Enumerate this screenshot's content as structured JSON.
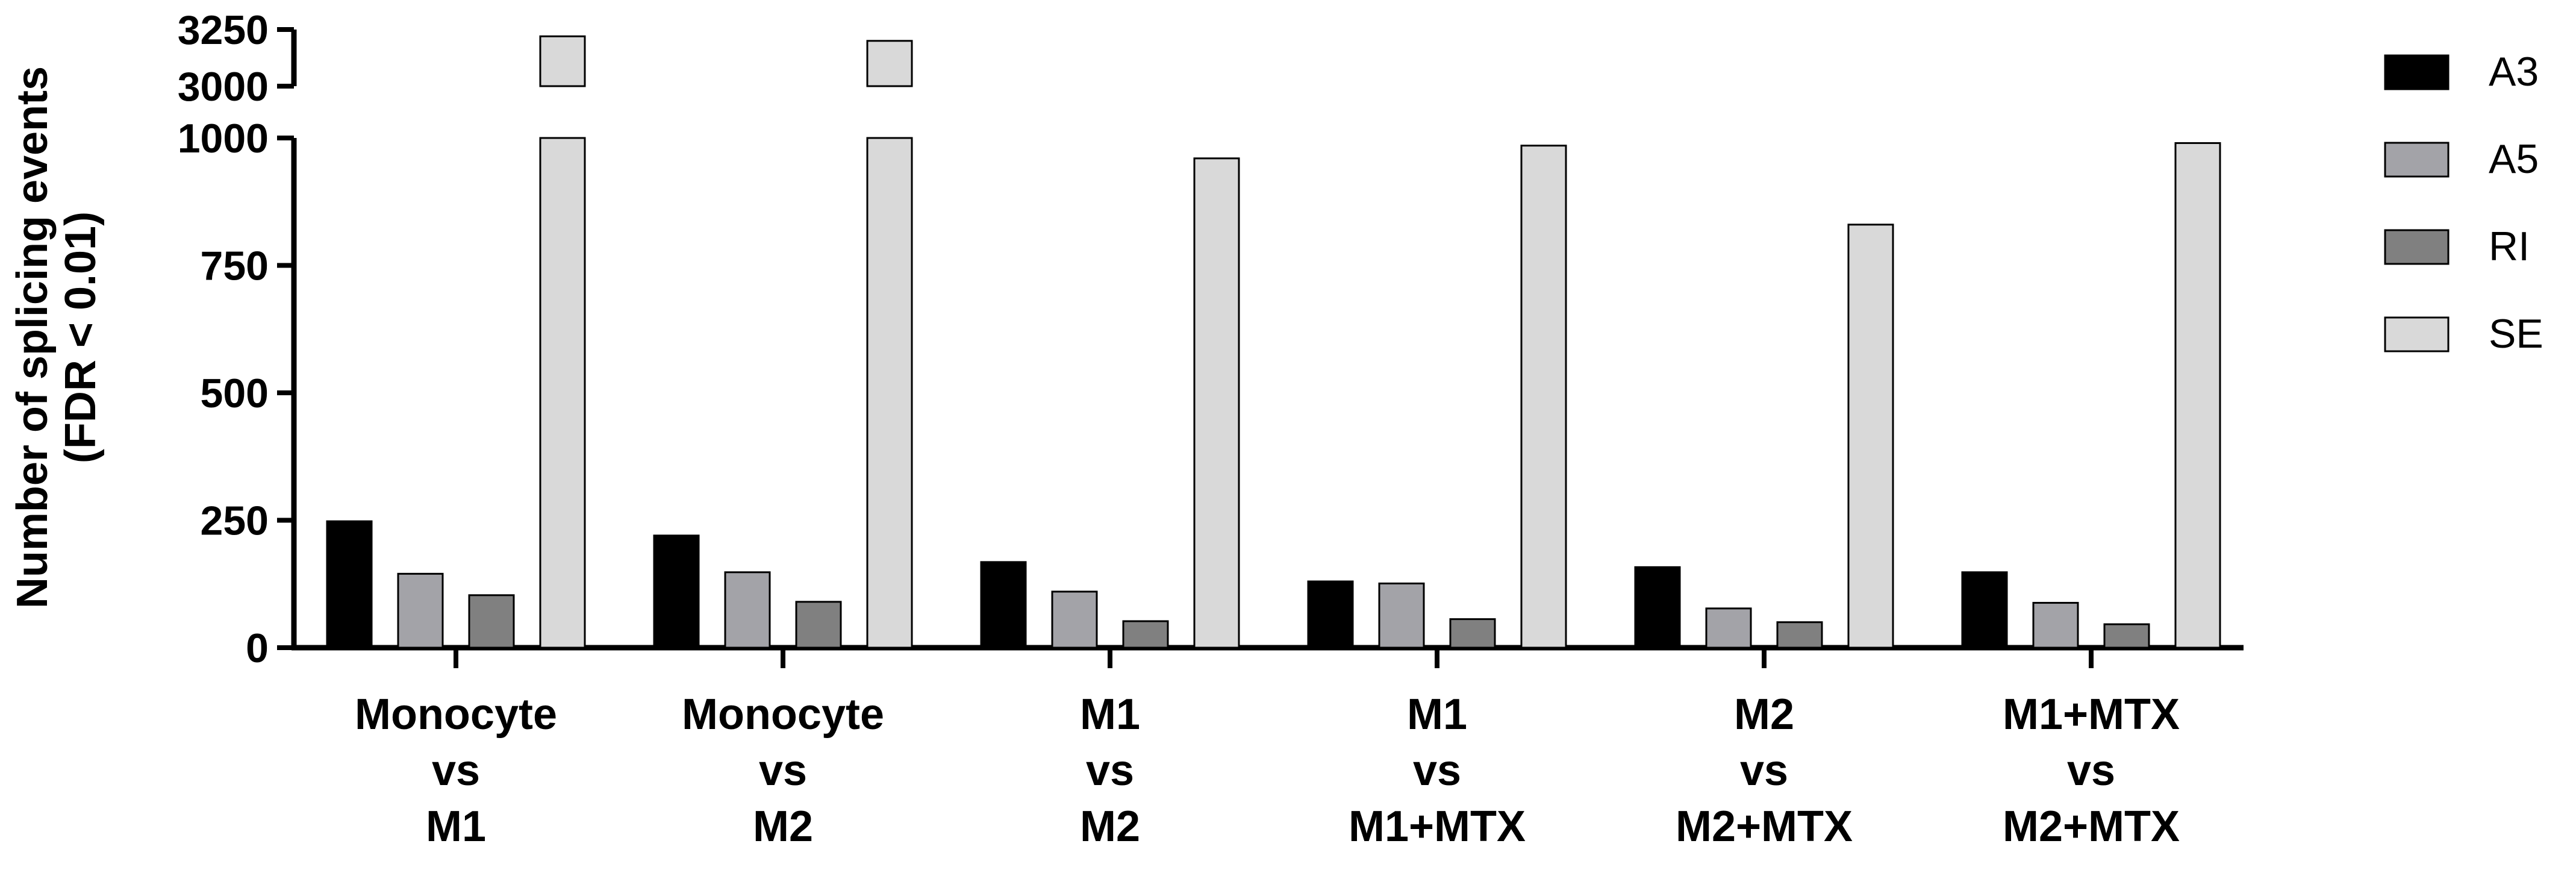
{
  "chart_data": {
    "type": "bar",
    "categories": [
      [
        "Monocyte",
        "vs",
        "M1"
      ],
      [
        "Monocyte",
        "vs",
        "M2"
      ],
      [
        "M1",
        "vs",
        "M2"
      ],
      [
        "M1",
        "vs",
        "M1+MTX"
      ],
      [
        "M2",
        "vs",
        "M2+MTX"
      ],
      [
        "M1+MTX",
        "vs",
        "M2+MTX"
      ]
    ],
    "series": [
      {
        "name": "A3",
        "color": "#000000",
        "values": [
          248,
          220,
          168,
          130,
          158,
          148
        ]
      },
      {
        "name": "A5",
        "color": "#a3a3a8",
        "values": [
          145,
          148,
          110,
          126,
          77,
          88
        ]
      },
      {
        "name": "RI",
        "color": "#808080",
        "values": [
          103,
          90,
          52,
          56,
          50,
          46
        ]
      },
      {
        "name": "SE",
        "color": "#d9d9d9",
        "values": [
          3220,
          3200,
          960,
          985,
          830,
          990
        ]
      }
    ],
    "ylabel": [
      "Number of splicing events",
      "(FDR < 0.01)"
    ],
    "y_axis": {
      "broken": true,
      "lower_range": [
        0,
        1000
      ],
      "lower_ticks": [
        "0",
        "250",
        "500",
        "750",
        "1000"
      ],
      "upper_range": [
        3000,
        3250
      ],
      "upper_ticks": [
        "3000",
        "3250"
      ]
    },
    "legend_position": "right",
    "grid": false
  }
}
